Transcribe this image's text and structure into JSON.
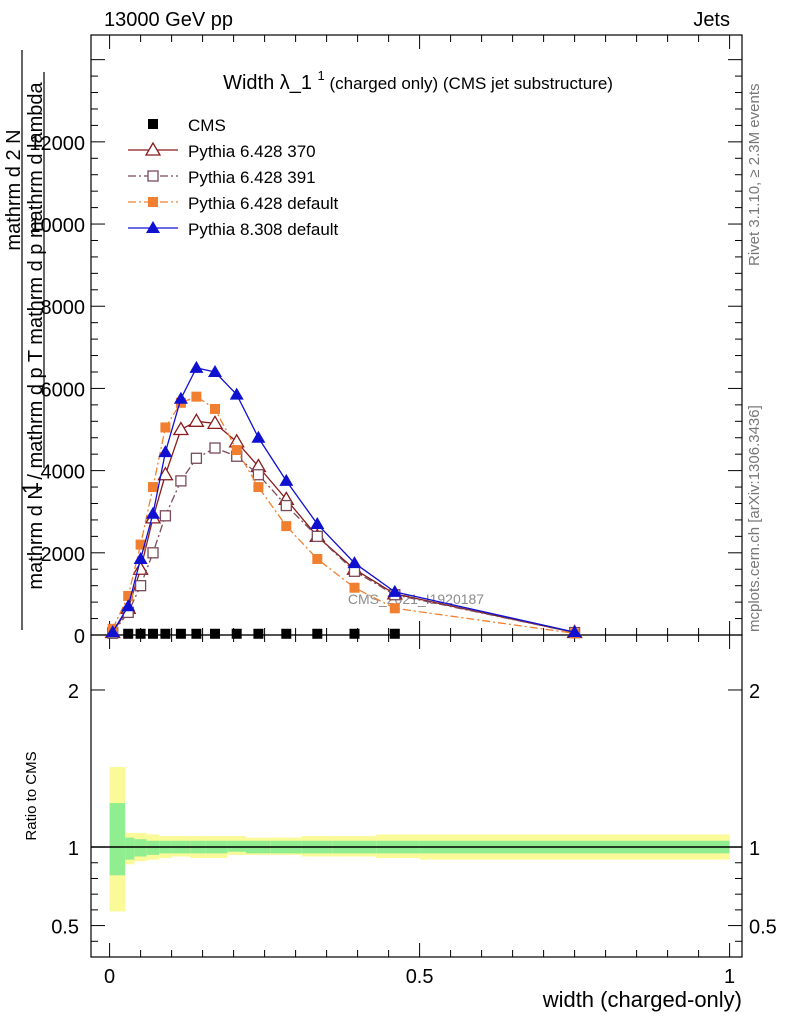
{
  "header": {
    "energy": "13000 GeV pp",
    "category": "Jets"
  },
  "side_text": {
    "rivet": "Rivet 3.1.10, ≥ 2.3M events",
    "mcplots": "mcplots.cern.ch [arXiv:1306.3436]"
  },
  "colors": {
    "cms": "#000000",
    "pythia6_370": "#8b1a1a",
    "pythia6_391": "#7a4a5a",
    "pythia6_default": "#f08030",
    "pythia8_default": "#1010d0",
    "band_inner": "#90ee90",
    "band_outer": "#fafa98"
  },
  "chart_data": [
    {
      "type": "line",
      "title": "Width λ_1¹ (charged only) (CMS jet substructure)",
      "title_main": "Width λ_1",
      "title_sup": "1",
      "title_rest": "(charged only) (CMS jet substructure)",
      "ylabel": "1 / mathrm d N / mathrm d p_T mathrm d p_T mathrm d lambda / mathrm d^2N",
      "ylabel_parts": [
        "1",
        "mathrm d N / mathrm d p",
        "T",
        "mathrm d p",
        "mathrm d lambda",
        "mathrm d",
        "2",
        "N"
      ],
      "xlim": [
        -0.03,
        1.02
      ],
      "ylim": [
        0,
        14600
      ],
      "yticks": [
        0,
        2000,
        4000,
        6000,
        8000,
        10000,
        12000
      ],
      "ytick_labels": [
        "0",
        "2000",
        "4000",
        "6000",
        "8000",
        "10000",
        "12000"
      ],
      "watermark": "CMS_2021_I1920187",
      "legend_position": "top-left",
      "series": [
        {
          "name": "CMS",
          "marker": "square-filled",
          "line": "none",
          "x": [
            0.005,
            0.03,
            0.05,
            0.07,
            0.09,
            0.115,
            0.14,
            0.17,
            0.205,
            0.24,
            0.285,
            0.335,
            0.395,
            0.46
          ],
          "y": [
            30,
            30,
            30,
            30,
            30,
            30,
            30,
            30,
            30,
            30,
            30,
            30,
            30,
            30
          ]
        },
        {
          "name": "Pythia 6.428 370",
          "marker": "triangle-open",
          "line": "solid",
          "x": [
            0.005,
            0.03,
            0.05,
            0.07,
            0.09,
            0.115,
            0.14,
            0.17,
            0.205,
            0.24,
            0.285,
            0.335,
            0.395,
            0.46,
            0.75
          ],
          "y": [
            60,
            650,
            1600,
            2850,
            3900,
            5000,
            5200,
            5150,
            4700,
            4100,
            3300,
            2400,
            1600,
            1000,
            60
          ]
        },
        {
          "name": "Pythia 6.428 391",
          "marker": "square-open",
          "line": "dash-dot",
          "x": [
            0.005,
            0.03,
            0.05,
            0.07,
            0.09,
            0.115,
            0.14,
            0.17,
            0.205,
            0.24,
            0.285,
            0.335,
            0.395,
            0.46,
            0.75
          ],
          "y": [
            50,
            550,
            1200,
            2000,
            2900,
            3750,
            4300,
            4550,
            4350,
            3900,
            3150,
            2400,
            1550,
            980,
            60
          ]
        },
        {
          "name": "Pythia 6.428 default",
          "marker": "square-filled",
          "line": "dash-dot",
          "x": [
            0.005,
            0.03,
            0.05,
            0.07,
            0.09,
            0.115,
            0.14,
            0.17,
            0.205,
            0.24,
            0.285,
            0.335,
            0.395,
            0.46,
            0.75
          ],
          "y": [
            150,
            950,
            2200,
            3600,
            5050,
            5650,
            5800,
            5500,
            4500,
            3600,
            2650,
            1850,
            1150,
            650,
            40
          ]
        },
        {
          "name": "Pythia 8.308 default",
          "marker": "triangle-filled",
          "line": "solid",
          "x": [
            0.005,
            0.03,
            0.05,
            0.07,
            0.09,
            0.115,
            0.14,
            0.17,
            0.205,
            0.24,
            0.285,
            0.335,
            0.395,
            0.46,
            0.75
          ],
          "y": [
            70,
            700,
            1850,
            2950,
            4450,
            5750,
            6500,
            6400,
            5850,
            4800,
            3750,
            2700,
            1750,
            1050,
            70
          ]
        }
      ]
    },
    {
      "type": "area",
      "ylabel": "Ratio to CMS",
      "xlabel": "width (charged-only)",
      "xlim": [
        -0.03,
        1.02
      ],
      "ylim": [
        0.3,
        2.35
      ],
      "yticks": [
        0.5,
        1,
        2
      ],
      "ytick_labels": [
        "0.5",
        "1",
        "2"
      ],
      "xticks": [
        0,
        0.5,
        1
      ],
      "xtick_labels": [
        "0",
        "0.5",
        "1"
      ],
      "reference": 1,
      "bins": {
        "edges": [
          0,
          0.025,
          0.04,
          0.06,
          0.08,
          0.1,
          0.13,
          0.155,
          0.19,
          0.22,
          0.26,
          0.31,
          0.36,
          0.43,
          0.5,
          1.0
        ],
        "inner_lo": [
          0.82,
          0.92,
          0.94,
          0.95,
          0.96,
          0.96,
          0.96,
          0.96,
          0.97,
          0.96,
          0.96,
          0.96,
          0.96,
          0.96,
          0.96
        ],
        "inner_hi": [
          1.28,
          1.06,
          1.05,
          1.04,
          1.04,
          1.04,
          1.04,
          1.04,
          1.04,
          1.04,
          1.04,
          1.04,
          1.04,
          1.04,
          1.04
        ],
        "outer_lo": [
          0.59,
          0.89,
          0.91,
          0.92,
          0.93,
          0.94,
          0.93,
          0.93,
          0.95,
          0.95,
          0.95,
          0.94,
          0.94,
          0.93,
          0.92
        ],
        "outer_hi": [
          1.51,
          1.09,
          1.09,
          1.08,
          1.07,
          1.07,
          1.07,
          1.07,
          1.07,
          1.06,
          1.06,
          1.07,
          1.07,
          1.08,
          1.08
        ]
      }
    }
  ]
}
